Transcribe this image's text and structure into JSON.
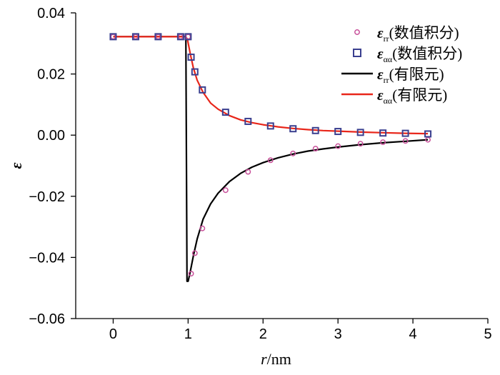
{
  "chart_data": {
    "type": "line",
    "title": "",
    "xlabel": {
      "var": "r",
      "unit": "/nm"
    },
    "ylabel": "ε",
    "xlim": [
      -0.5,
      5
    ],
    "ylim": [
      -0.06,
      0.04
    ],
    "xticks": [
      0,
      1,
      2,
      3,
      4,
      5
    ],
    "xtick_labels": [
      "0",
      "1",
      "2",
      "3",
      "4",
      "5"
    ],
    "yticks": [
      0.04,
      0.02,
      0.0,
      -0.02,
      -0.04,
      -0.06
    ],
    "ytick_labels": [
      "0.04",
      "0.02",
      "0.00",
      "−0.02",
      "−0.04",
      "−0.06"
    ],
    "grid": false,
    "legend_position": "top-right",
    "legend": [
      {
        "symbol": "ε",
        "sub": "rr",
        "text": "(数值积分)",
        "style": "circle"
      },
      {
        "symbol": "ε",
        "sub": "αα",
        "text": "(数值积分)",
        "style": "square"
      },
      {
        "symbol": "ε",
        "sub": "rr",
        "text": "(有限元)",
        "style": "line-black"
      },
      {
        "symbol": "ε",
        "sub": "αα",
        "text": "(有限元)",
        "style": "line-red"
      }
    ],
    "colors": {
      "circle": "#c8509a",
      "square": "#3a3f8f",
      "line_rr": "#000000",
      "line_aa": "#e8261a"
    },
    "series": [
      {
        "id": "rr_numeric",
        "style": "circle",
        "x": [
          0,
          0.3,
          0.6,
          0.9,
          1.0,
          1.04,
          1.09,
          1.19,
          1.5,
          1.8,
          2.1,
          2.4,
          2.7,
          3.0,
          3.3,
          3.6,
          3.9,
          4.2
        ],
        "y": [
          0.0322,
          0.0322,
          0.0322,
          0.0322,
          0.0322,
          -0.0453,
          -0.0386,
          -0.0305,
          -0.018,
          -0.012,
          -0.0082,
          -0.006,
          -0.0044,
          -0.0036,
          -0.0028,
          -0.0023,
          -0.0019,
          -0.0015
        ]
      },
      {
        "id": "aa_numeric",
        "style": "square",
        "x": [
          0,
          0.3,
          0.6,
          0.9,
          1.0,
          1.04,
          1.09,
          1.19,
          1.5,
          1.8,
          2.1,
          2.4,
          2.7,
          3.0,
          3.3,
          3.6,
          3.9,
          4.2
        ],
        "y": [
          0.0322,
          0.0322,
          0.0322,
          0.0322,
          0.0322,
          0.0255,
          0.0207,
          0.0148,
          0.0075,
          0.0045,
          0.003,
          0.0021,
          0.0015,
          0.0012,
          0.0009,
          0.0007,
          0.0006,
          0.0004
        ]
      },
      {
        "id": "rr_fem",
        "style": "line-black",
        "x": [
          0,
          0.95,
          0.97,
          0.985,
          1.0,
          1.03,
          1.07,
          1.12,
          1.2,
          1.3,
          1.4,
          1.55,
          1.7,
          1.85,
          2.0,
          2.2,
          2.4,
          2.6,
          2.8,
          3.0,
          3.3,
          3.6,
          3.9,
          4.2
        ],
        "y": [
          0.0322,
          0.0322,
          0.0322,
          -0.0478,
          -0.0478,
          -0.0445,
          -0.0395,
          -0.034,
          -0.0275,
          -0.0225,
          -0.019,
          -0.0152,
          -0.0125,
          -0.0105,
          -0.009,
          -0.0074,
          -0.0062,
          -0.0052,
          -0.0045,
          -0.0039,
          -0.0031,
          -0.0025,
          -0.002,
          -0.0015
        ]
      },
      {
        "id": "aa_fem",
        "style": "line-red",
        "x": [
          0,
          0.96,
          0.99,
          1.03,
          1.07,
          1.12,
          1.2,
          1.3,
          1.4,
          1.55,
          1.7,
          1.85,
          2.0,
          2.2,
          2.4,
          2.6,
          2.8,
          3.0,
          3.3,
          3.6,
          3.9,
          4.2
        ],
        "y": [
          0.0322,
          0.0322,
          0.0315,
          0.0265,
          0.022,
          0.018,
          0.014,
          0.0105,
          0.0085,
          0.0064,
          0.005,
          0.0041,
          0.0034,
          0.0027,
          0.0022,
          0.0018,
          0.0015,
          0.0013,
          0.001,
          0.0008,
          0.0006,
          0.0005
        ]
      }
    ]
  }
}
